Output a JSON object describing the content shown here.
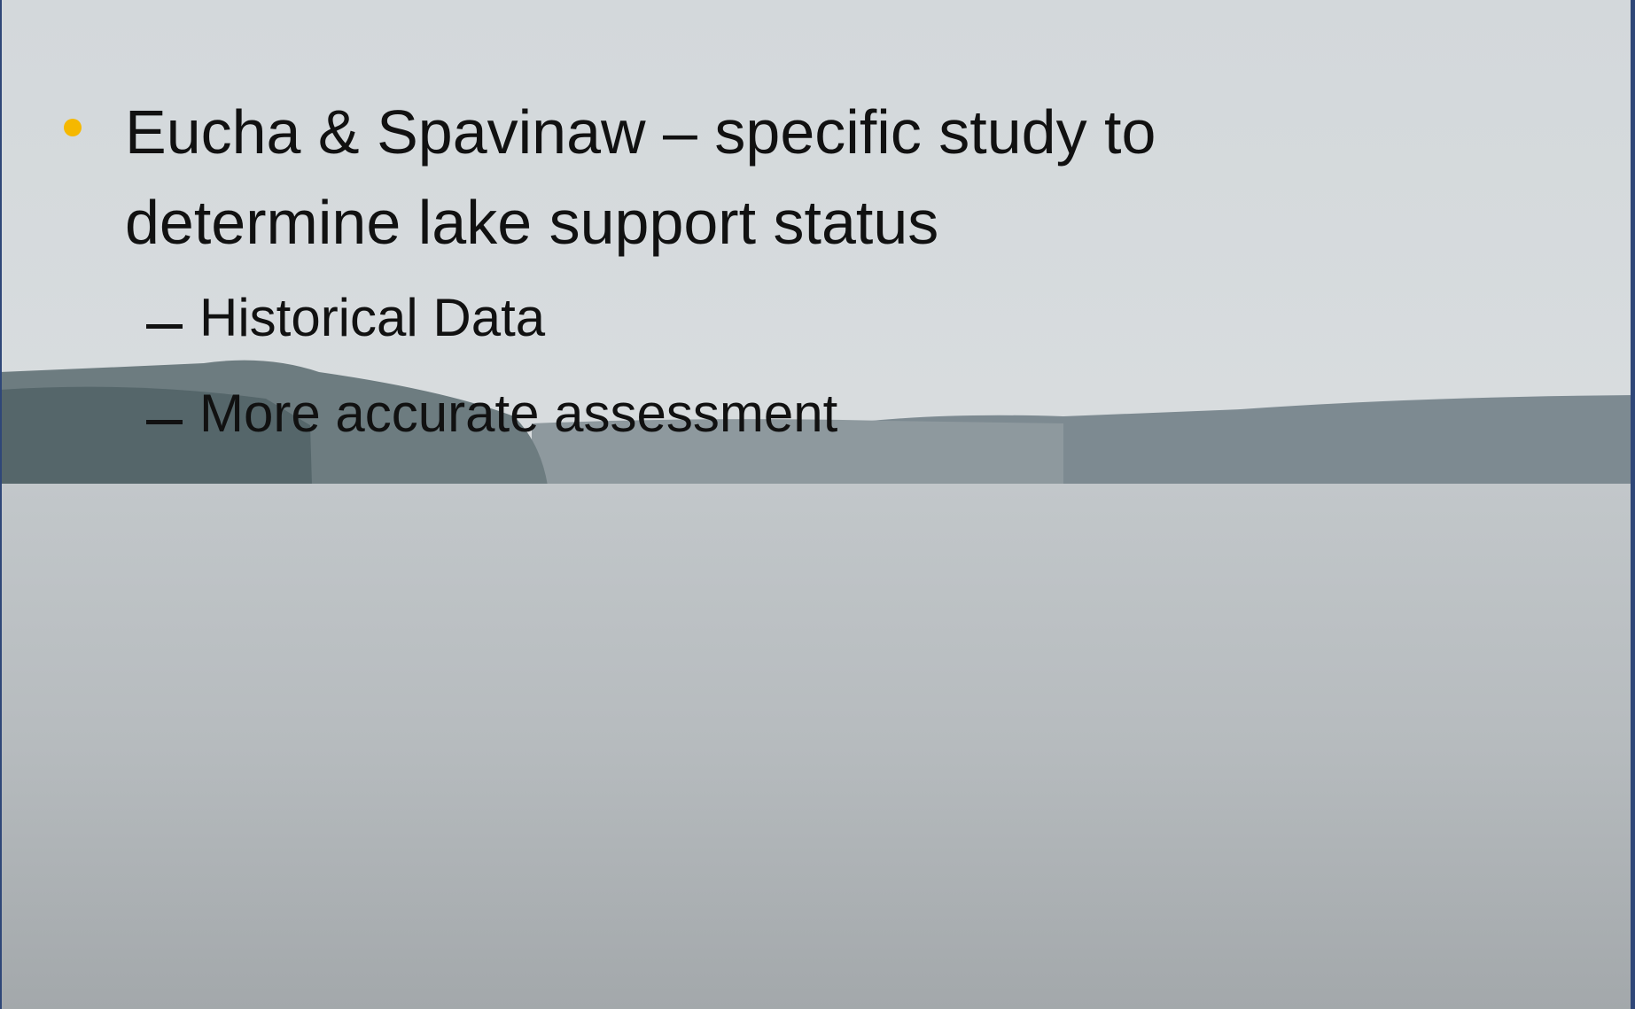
{
  "slide": {
    "bullets": [
      {
        "text": "Eucha & Spavinaw – specific study to determine lake support status",
        "sub_bullets": [
          "Historical Data",
          "More accurate assessment"
        ]
      }
    ]
  }
}
